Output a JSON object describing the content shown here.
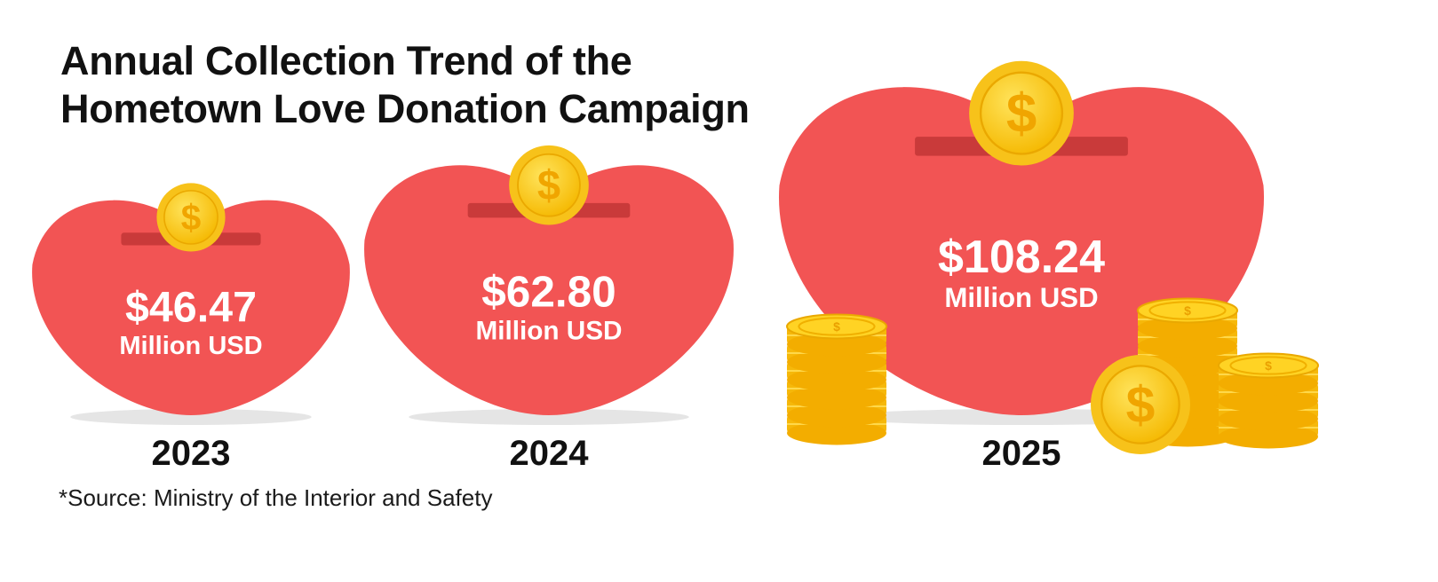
{
  "title": {
    "line1": "Annual Collection Trend of the",
    "line2": "Hometown Love Donation Campaign"
  },
  "source": "*Source: Ministry of the Interior and Safety",
  "colors": {
    "heart": "#f25454",
    "coin": "#f7c21a",
    "coin_dark": "#eaa800",
    "background": "#ffffff"
  },
  "icons": [
    "heart-piggy-bank-icon",
    "dollar-coin-icon",
    "coin-stack-icon"
  ],
  "chart_data": {
    "type": "bar",
    "title": "Annual Collection Trend of the Hometown Love Donation Campaign",
    "categories": [
      "2023",
      "2024",
      "2025"
    ],
    "values": [
      46.47,
      62.8,
      108.24
    ],
    "value_labels": [
      "$46.47",
      "$62.80",
      "$108.24"
    ],
    "unit_label": "Million USD",
    "encoding": "heart-shaped icon size grows with value",
    "grid": false
  }
}
